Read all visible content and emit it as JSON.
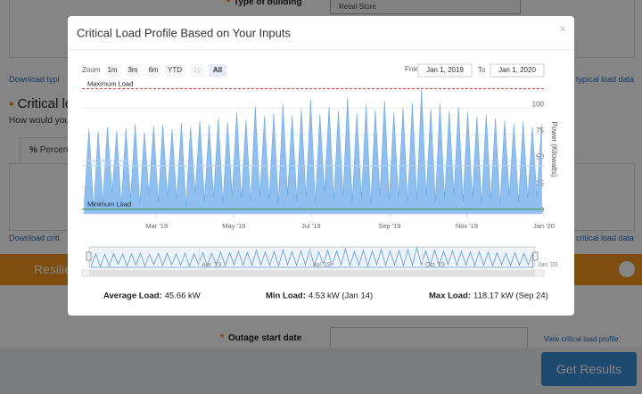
{
  "background": {
    "building_mark": "*",
    "building_label": "Type of building",
    "building_value": "Retail Store",
    "download_typical_left": "Download typi",
    "download_typical_right": "typical load data",
    "critical_heading": "Critical lo",
    "critical_question": "How would you",
    "percent_icon": "%",
    "percent_tab": "Percen",
    "download_critical_left": "Download criti",
    "download_critical_right": "critical load data",
    "resilience_header": "Resilie",
    "outage_mark": "*",
    "outage_label": "Outage start date",
    "view_profile": "View critical load profile",
    "get_results": "Get Results"
  },
  "modal": {
    "title": "Critical Load Profile Based on Your Inputs",
    "close": "×",
    "zoom_label": "Zoom",
    "zoom_buttons": [
      "1m",
      "3m",
      "6m",
      "YTD",
      "1y",
      "All"
    ],
    "zoom_disabled": "1y",
    "zoom_selected": "All",
    "from_label": "From",
    "from_value": "Jan 1, 2019",
    "to_label": "To",
    "to_value": "Jan 1, 2020",
    "stats": [
      {
        "label": "Average Load:",
        "value": "45.66 kW"
      },
      {
        "label": "Min Load:",
        "value": "4.53 kW (Jan 14)"
      },
      {
        "label": "Max Load:",
        "value": "118.17 kW (Sep 24)"
      }
    ]
  },
  "chart_data": {
    "type": "area",
    "y_label": "Power (Kilowatts)",
    "color": "#8fbfee",
    "grid": true,
    "y_axis_side": "right",
    "xlim": [
      "2019-01",
      "2020-01"
    ],
    "xticks": [
      {
        "value": "2019-03",
        "label": "Mar '19"
      },
      {
        "value": "2019-05",
        "label": "May '19"
      },
      {
        "value": "2019-07",
        "label": "Jul '19"
      },
      {
        "value": "2019-09",
        "label": "Sep '19"
      },
      {
        "value": "2019-11",
        "label": "Nov '19"
      },
      {
        "value": "2020-01",
        "label": "Jan '20"
      }
    ],
    "navigator_xticks": [
      {
        "value": "2019-04",
        "label": "Apr '19"
      },
      {
        "value": "2019-07",
        "label": "Jul '19"
      },
      {
        "value": "2019-10",
        "label": "Oct '19"
      },
      {
        "value": "2020-01",
        "label": "Jan '20"
      }
    ],
    "ylim": [
      0,
      122
    ],
    "yticks": [
      0,
      25,
      50,
      75,
      100
    ],
    "reference_lines": [
      {
        "name": "Maximum Load",
        "value": 118.17,
        "color": "#e0373a",
        "dash": true
      },
      {
        "name": "Average Load",
        "value": 45.66,
        "color": "#b9d3ee",
        "dash": false
      },
      {
        "name": "Minimum Load",
        "value": 4.53,
        "color": "#3a8d3a",
        "dash": false
      }
    ],
    "values": [
      12,
      80,
      4.53,
      78,
      10,
      82,
      20,
      79,
      8,
      81,
      14,
      85,
      9,
      77,
      18,
      83,
      11,
      84,
      16,
      80,
      13,
      86,
      7,
      82,
      19,
      88,
      12,
      84,
      15,
      90,
      10,
      87,
      17,
      96,
      14,
      89,
      11,
      102,
      16,
      92,
      13,
      95,
      9,
      104,
      18,
      93,
      12,
      99,
      15,
      108,
      10,
      94,
      20,
      101,
      13,
      97,
      16,
      110,
      11,
      95,
      14,
      103,
      9,
      98,
      17,
      107,
      12,
      96,
      15,
      100,
      10,
      105,
      13,
      118.17,
      16,
      99,
      11,
      104,
      14,
      97,
      18,
      101,
      12,
      96,
      15,
      92,
      10,
      94,
      13,
      90,
      9,
      88,
      17,
      85,
      11,
      87,
      14,
      82,
      16,
      84
    ]
  }
}
